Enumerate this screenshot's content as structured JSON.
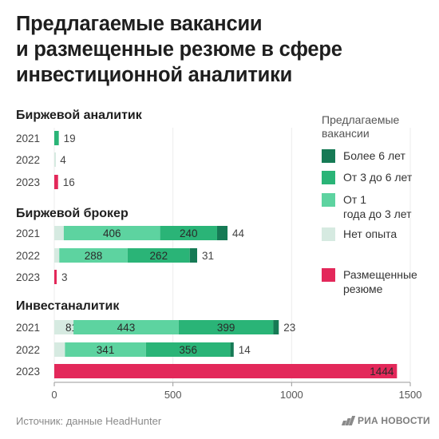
{
  "title_lines": [
    "Предлагаемые вакансии",
    "и размещенные резюме в сфере",
    "инвестиционной аналитики"
  ],
  "source": "Источник: данные HeadHunter",
  "publisher": "РИА НОВОСТИ",
  "colors": {
    "more6": "#167a55",
    "3to6": "#2ab477",
    "1to3": "#5dd3a0",
    "none": "#d6eae1",
    "resumes": "#e3285a"
  },
  "legend": {
    "title": "Предлагаемые вакансии",
    "items": [
      {
        "key": "more6",
        "label": "Более 6 лет"
      },
      {
        "key": "3to6",
        "label": "От 3 до 6 лет"
      },
      {
        "key": "1to3",
        "label": "От 1 года до 3 лет"
      },
      {
        "key": "none",
        "label": "Нет опыта"
      },
      {
        "key": "resumes",
        "label": "Размещенные резюме"
      }
    ]
  },
  "chart_data": {
    "type": "bar",
    "orientation": "horizontal",
    "stacked": true,
    "xlim": [
      0,
      1500
    ],
    "xticks": [
      "0",
      "500",
      "1000",
      "1500"
    ],
    "groups": [
      {
        "name": "Биржевой аналитик",
        "rows": [
          {
            "year": "2021",
            "kind": "vacancies",
            "segments": [
              {
                "key": "none",
                "value": 0,
                "label": ""
              },
              {
                "key": "1to3",
                "value": 0,
                "label": ""
              },
              {
                "key": "3to6",
                "value": 19,
                "label": ""
              },
              {
                "key": "more6",
                "value": 0,
                "label": ""
              }
            ],
            "total_label": "19"
          },
          {
            "year": "2022",
            "kind": "vacancies",
            "segments": [
              {
                "key": "none",
                "value": 4,
                "label": ""
              },
              {
                "key": "1to3",
                "value": 0,
                "label": ""
              },
              {
                "key": "3to6",
                "value": 0,
                "label": ""
              },
              {
                "key": "more6",
                "value": 0,
                "label": ""
              }
            ],
            "total_label": "4"
          },
          {
            "year": "2023",
            "kind": "resumes",
            "value": 16,
            "total_label": "16"
          }
        ]
      },
      {
        "name": "Биржевой брокер",
        "rows": [
          {
            "year": "2021",
            "kind": "vacancies",
            "segments": [
              {
                "key": "none",
                "value": 40,
                "label": "40"
              },
              {
                "key": "1to3",
                "value": 406,
                "label": "406"
              },
              {
                "key": "3to6",
                "value": 240,
                "label": "240"
              },
              {
                "key": "more6",
                "value": 44,
                "label": ""
              }
            ],
            "total_label": "44"
          },
          {
            "year": "2022",
            "kind": "vacancies",
            "segments": [
              {
                "key": "none",
                "value": 21,
                "label": "21"
              },
              {
                "key": "1to3",
                "value": 288,
                "label": "288"
              },
              {
                "key": "3to6",
                "value": 262,
                "label": "262"
              },
              {
                "key": "more6",
                "value": 31,
                "label": ""
              }
            ],
            "total_label": "31"
          },
          {
            "year": "2023",
            "kind": "resumes",
            "value": 3,
            "total_label": "3"
          }
        ]
      },
      {
        "name": "Инвестаналитик",
        "rows": [
          {
            "year": "2021",
            "kind": "vacancies",
            "segments": [
              {
                "key": "none",
                "value": 81,
                "label": "81"
              },
              {
                "key": "1to3",
                "value": 443,
                "label": "443"
              },
              {
                "key": "3to6",
                "value": 399,
                "label": "399"
              },
              {
                "key": "more6",
                "value": 23,
                "label": ""
              }
            ],
            "total_label": "23"
          },
          {
            "year": "2022",
            "kind": "vacancies",
            "segments": [
              {
                "key": "none",
                "value": 45,
                "label": "45"
              },
              {
                "key": "1to3",
                "value": 341,
                "label": "341"
              },
              {
                "key": "3to6",
                "value": 356,
                "label": "356"
              },
              {
                "key": "more6",
                "value": 14,
                "label": ""
              }
            ],
            "total_label": "14"
          },
          {
            "year": "2023",
            "kind": "resumes",
            "value": 1444,
            "label_inside": "1444"
          }
        ]
      }
    ]
  }
}
